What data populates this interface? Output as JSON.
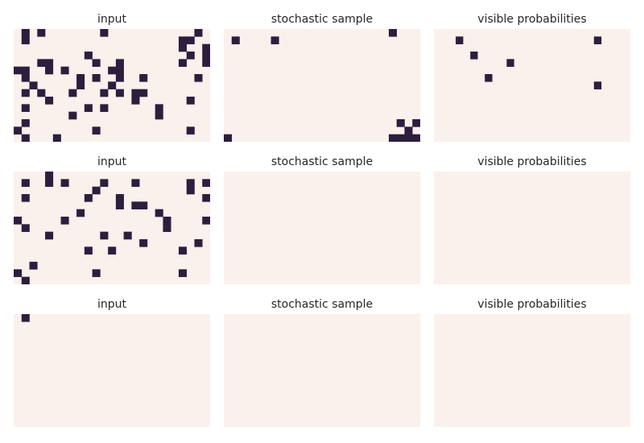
{
  "chart_data": {
    "type": "heatmap",
    "colors": {
      "empty": "#faf0ec",
      "full": "#2d1e3e"
    },
    "panels": [
      {
        "title": "input",
        "grid": [
          "0101000000010000000000010",
          "0100000000000000000001100",
          "0000000000000000000001001",
          "0000000001000000000000101",
          "0001100000100100000001001",
          "1100101000001100000000000",
          "0100000010100100100000010",
          "0010000010001000000000000",
          "0101000100010101100000000",
          "0000100000000001000000100",
          "0100000001010000001000000",
          "0000000100000000001000000",
          "0100000000000000000000000",
          "1000000000100000000000100",
          "0100010000000000000000000"
        ]
      },
      {
        "title": "stochastic sample",
        "grid": [
          "0000000000000000000001000",
          "0100001000000000000000000",
          "0000000000000000000000000",
          "0000000000000000000000000",
          "0000000000000000000000000",
          "0000000000000000000000000",
          "0000000000000000000000000",
          "0000000000000000000000000",
          "0000000000000000000000000",
          "0000000000000000000000000",
          "0000000000000000000000000",
          "0000000000000000000000000",
          "0000000000000000000000101",
          "0000000000000000000000010",
          "1000000000000000000001111"
        ]
      },
      {
        "title": "visible probabilities",
        "grid": [
          "000000000000000000000000000",
          "000100000000000000000010000",
          "000000000000000000000000000",
          "000001000000000000000000000",
          "000000000010000000000000000",
          "000000000000000000000000000",
          "000000010000000000000000000",
          "000000000000000000000010000",
          "000000000000000000000000000",
          "000000000000000000000000000",
          "000000000000000000000000000",
          "000000000000000000000000000",
          "000000000000000000000000000",
          "000000000000000000000000000",
          "000000000000000000000000000"
        ]
      },
      {
        "title": "input",
        "grid": [
          "0000100000000000000000000",
          "0100101000010001000000101",
          "0000000000100000000000100",
          "0100000001000100000000001",
          "0000000000000101100000000",
          "0000000010000000001000000",
          "1000001000000000000100001",
          "0100000000000000000100000",
          "0000100000010010000000000",
          "0000000000000000100000010",
          "0000000001001000000001000",
          "0000000000000000000000000",
          "0010000000000000000000000",
          "1000000000100000000001000",
          "0100000000000000000000000"
        ]
      },
      {
        "title": "stochastic sample",
        "grid": [
          "0000000000000000000000000",
          "0000000000000000000000000",
          "0000000000000000000000000",
          "0000000000000000000000000",
          "0000000000000000000000000",
          "0000000000000000000000000",
          "0000000000000000000000000",
          "0000000000000000000000000",
          "0000000000000000000000000",
          "0000000000000000000000000",
          "0000000000000000000000000",
          "0000000000000000000000000",
          "0000000000000000000000000",
          "0000000000000000000000000",
          "0000000000000000000000000"
        ]
      },
      {
        "title": "visible probabilities",
        "grid": [
          "000000000000000000000000000",
          "000000000000000000000000000",
          "000000000000000000000000000",
          "000000000000000000000000000",
          "000000000000000000000000000",
          "000000000000000000000000000",
          "000000000000000000000000000",
          "000000000000000000000000000",
          "000000000000000000000000000",
          "000000000000000000000000000",
          "000000000000000000000000000",
          "000000000000000000000000000",
          "000000000000000000000000000",
          "000000000000000000000000000",
          "000000000000000000000000000"
        ]
      },
      {
        "title": "input",
        "grid": [
          "0100000000000000000000000",
          "0000000000000000000000000",
          "0000000000000000000000000",
          "0000000000000000000000000",
          "0000000000000000000000000",
          "0000000000000000000000000",
          "0000000000000000000000000",
          "0000000000000000000000000",
          "0000000000000000000000000",
          "0000000000000000000000000",
          "0000000000000000000000000",
          "0000000000000000000000000",
          "0000000000000000000000000",
          "0000000000000000000000000",
          "0000000000000000000000000"
        ]
      },
      {
        "title": "stochastic sample",
        "grid": [
          "0000000000000000000000000",
          "0000000000000000000000000",
          "0000000000000000000000000",
          "0000000000000000000000000",
          "0000000000000000000000000",
          "0000000000000000000000000",
          "0000000000000000000000000",
          "0000000000000000000000000",
          "0000000000000000000000000",
          "0000000000000000000000000",
          "0000000000000000000000000",
          "0000000000000000000000000",
          "0000000000000000000000000",
          "0000000000000000000000000",
          "0000000000000000000000000"
        ]
      },
      {
        "title": "visible probabilities",
        "grid": [
          "000000000000000000000000000",
          "000000000000000000000000000",
          "000000000000000000000000000",
          "000000000000000000000000000",
          "000000000000000000000000000",
          "000000000000000000000000000",
          "000000000000000000000000000",
          "000000000000000000000000000",
          "000000000000000000000000000",
          "000000000000000000000000000",
          "000000000000000000000000000",
          "000000000000000000000000000",
          "000000000000000000000000000",
          "000000000000000000000000000",
          "000000000000000000000000000"
        ]
      }
    ]
  }
}
